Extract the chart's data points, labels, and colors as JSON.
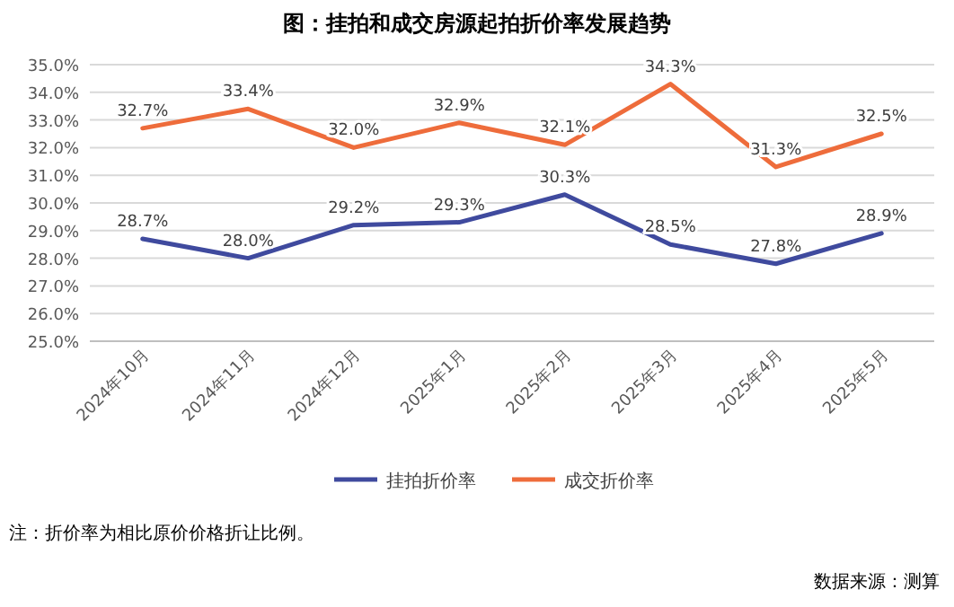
{
  "chart_data": {
    "type": "line",
    "title": "图：挂拍和成交房源起拍折价率发展趋势",
    "categories": [
      "2024年10月",
      "2024年11月",
      "2024年12月",
      "2025年1月",
      "2025年2月",
      "2025年3月",
      "2025年4月",
      "2025年5月"
    ],
    "series": [
      {
        "name": "挂拍折价率",
        "color": "#3f4a9e",
        "values": [
          28.7,
          28.0,
          29.2,
          29.3,
          30.3,
          28.5,
          27.8,
          28.9
        ],
        "value_labels": [
          "28.7%",
          "28.0%",
          "29.2%",
          "29.3%",
          "30.3%",
          "28.5%",
          "27.8%",
          "28.9%"
        ]
      },
      {
        "name": "成交折价率",
        "color": "#ee6c3b",
        "values": [
          32.7,
          33.4,
          32.0,
          32.9,
          32.1,
          34.3,
          31.3,
          32.5
        ],
        "value_labels": [
          "32.7%",
          "33.4%",
          "32.0%",
          "32.9%",
          "32.1%",
          "34.3%",
          "31.3%",
          "32.5%"
        ]
      }
    ],
    "ylim": [
      25,
      35
    ],
    "yticks": [
      {
        "value": 25,
        "label": "25.0%"
      },
      {
        "value": 26,
        "label": "26.0%"
      },
      {
        "value": 27,
        "label": "27.0%"
      },
      {
        "value": 28,
        "label": "28.0%"
      },
      {
        "value": 29,
        "label": "29.0%"
      },
      {
        "value": 30,
        "label": "30.0%"
      },
      {
        "value": 31,
        "label": "31.0%"
      },
      {
        "value": 32,
        "label": "32.0%"
      },
      {
        "value": 33,
        "label": "33.0%"
      },
      {
        "value": 34,
        "label": "34.0%"
      },
      {
        "value": 35,
        "label": "35.0%"
      }
    ],
    "grid": "y",
    "legend": "bottom",
    "marker": "none",
    "line_style": "solid",
    "annotations": [
      "注：折价率为相比原价价格折让比例。",
      "数据来源：测算"
    ]
  }
}
